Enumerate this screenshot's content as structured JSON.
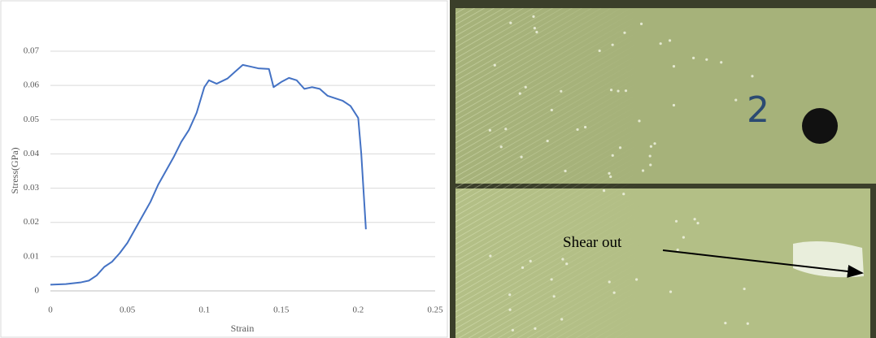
{
  "chart_data": {
    "type": "line",
    "x": [
      0,
      0.01,
      0.02,
      0.025,
      0.03,
      0.035,
      0.04,
      0.045,
      0.05,
      0.055,
      0.06,
      0.065,
      0.07,
      0.075,
      0.08,
      0.085,
      0.09,
      0.095,
      0.1,
      0.103,
      0.108,
      0.115,
      0.12,
      0.125,
      0.13,
      0.135,
      0.142,
      0.145,
      0.15,
      0.155,
      0.16,
      0.165,
      0.17,
      0.175,
      0.18,
      0.19,
      0.195,
      0.2,
      0.202,
      0.205
    ],
    "values": [
      0.0018,
      0.002,
      0.0025,
      0.003,
      0.0045,
      0.007,
      0.0085,
      0.011,
      0.014,
      0.018,
      0.022,
      0.026,
      0.031,
      0.035,
      0.039,
      0.0435,
      0.047,
      0.052,
      0.0595,
      0.0615,
      0.0605,
      0.062,
      0.064,
      0.066,
      0.0655,
      0.065,
      0.0648,
      0.0595,
      0.061,
      0.0622,
      0.0615,
      0.059,
      0.0595,
      0.059,
      0.057,
      0.0555,
      0.054,
      0.0505,
      0.04,
      0.018
    ],
    "color": "#4472c4",
    "xlabel": "Strain",
    "ylabel": "Stress(GPa)",
    "xlim": [
      0,
      0.25
    ],
    "xticks": [
      0,
      0.05,
      0.1,
      0.15,
      0.2,
      0.25
    ],
    "ylim": [
      0,
      0.07
    ],
    "yticks": [
      0,
      0.01,
      0.02,
      0.03,
      0.04,
      0.05,
      0.06,
      0.07
    ],
    "grid": true
  },
  "photo": {
    "specimen_number": "2",
    "annotation": "Shear out"
  }
}
